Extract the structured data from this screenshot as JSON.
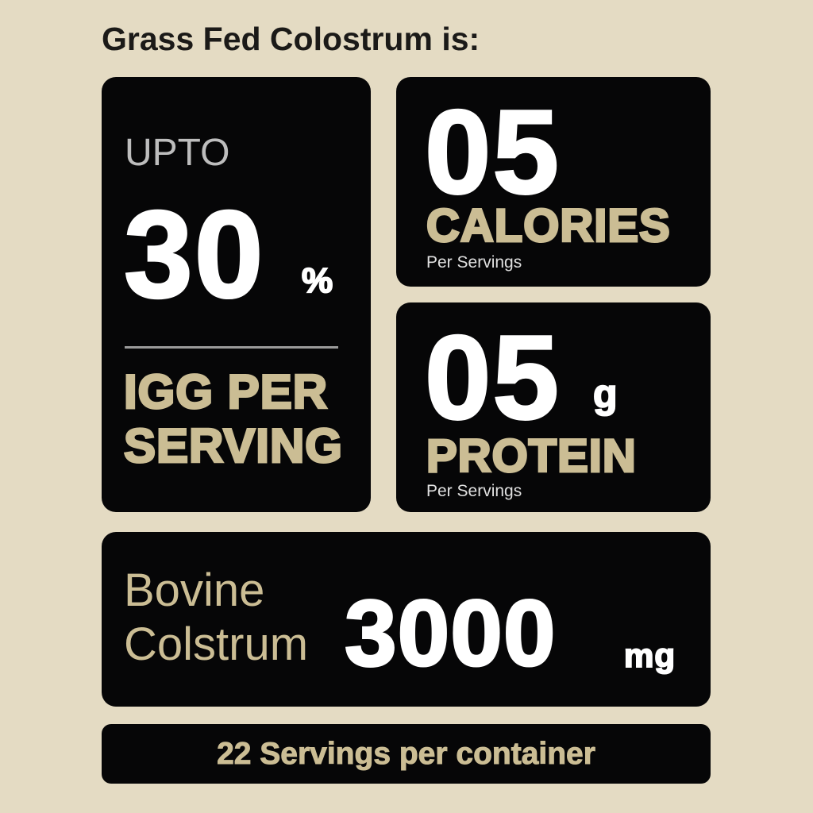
{
  "title": "Grass Fed Colostrum is:",
  "colors": {
    "background": "#e4dbc3",
    "card": "#060607",
    "accent": "#cbbd94",
    "muted": "#bdbdbd"
  },
  "igg": {
    "prefix": "UPTO",
    "value": "30",
    "unit": "%",
    "label_line1": "IGG PER",
    "label_line2": "SERVING"
  },
  "calories": {
    "value": "05",
    "label": "CALORIES",
    "sub": "Per Servings"
  },
  "protein": {
    "value": "05",
    "unit": "g",
    "label": "PROTEIN",
    "sub": "Per Servings"
  },
  "bovine": {
    "label_line1": "Bovine",
    "label_line2": "Colstrum",
    "value": "3000",
    "unit": "mg"
  },
  "servings": {
    "text": "22 Servings per container"
  }
}
